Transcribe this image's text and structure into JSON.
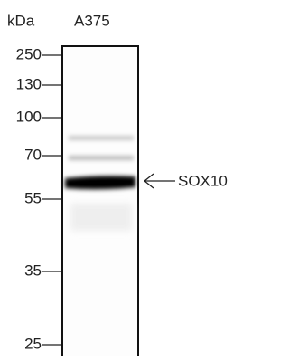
{
  "header": {
    "unit": "kDa",
    "lane": "A375"
  },
  "markers": [
    250,
    130,
    100,
    70,
    55,
    35,
    25
  ],
  "annotation": "SOX10"
}
